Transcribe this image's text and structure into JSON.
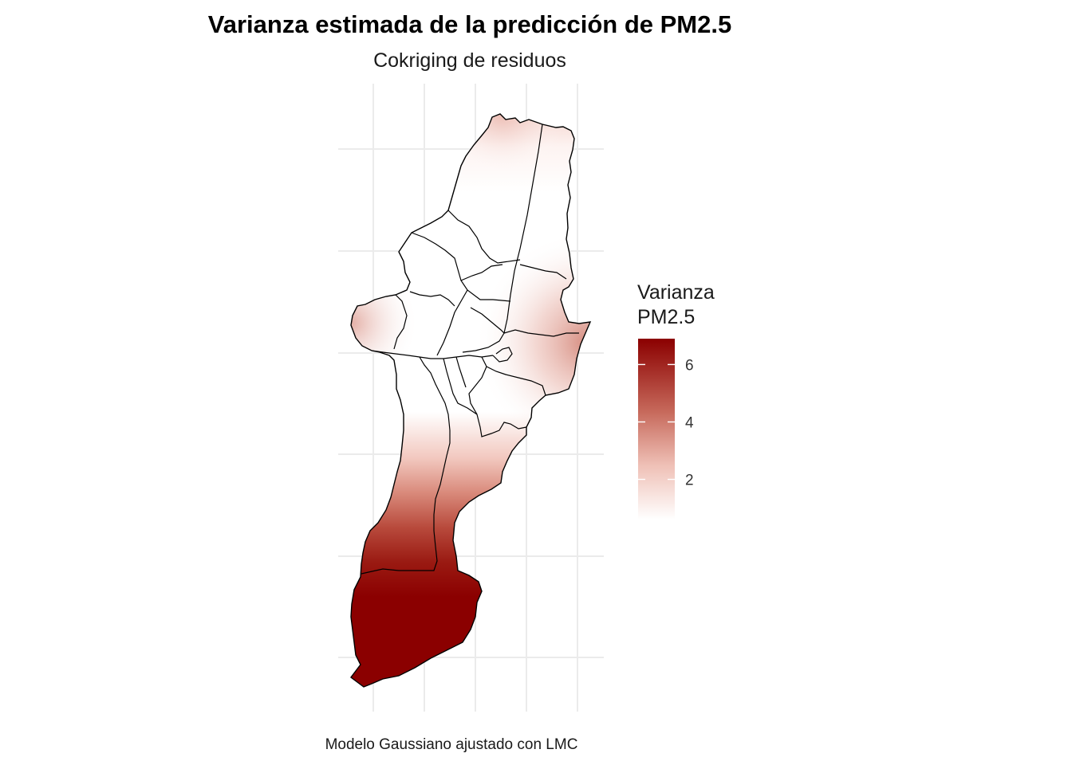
{
  "plot": {
    "title": "Varianza estimada de la predicción de PM2.5",
    "subtitle": "Cokriging de residuos",
    "caption": "Modelo Gaussiano ajustado con LMC"
  },
  "legend": {
    "title_line1": "Varianza",
    "title_line2": "PM2.5",
    "range": [
      0.6,
      6.9
    ],
    "ticks": [
      {
        "value": 6,
        "label": "6"
      },
      {
        "value": 4,
        "label": "4"
      },
      {
        "value": 2,
        "label": "2"
      }
    ],
    "colors": {
      "low": "#ffffff",
      "high": "#8b0000"
    }
  },
  "map": {
    "panel_grid": true,
    "fill_scale": "white-to-darkred gradient of prediction variance"
  }
}
